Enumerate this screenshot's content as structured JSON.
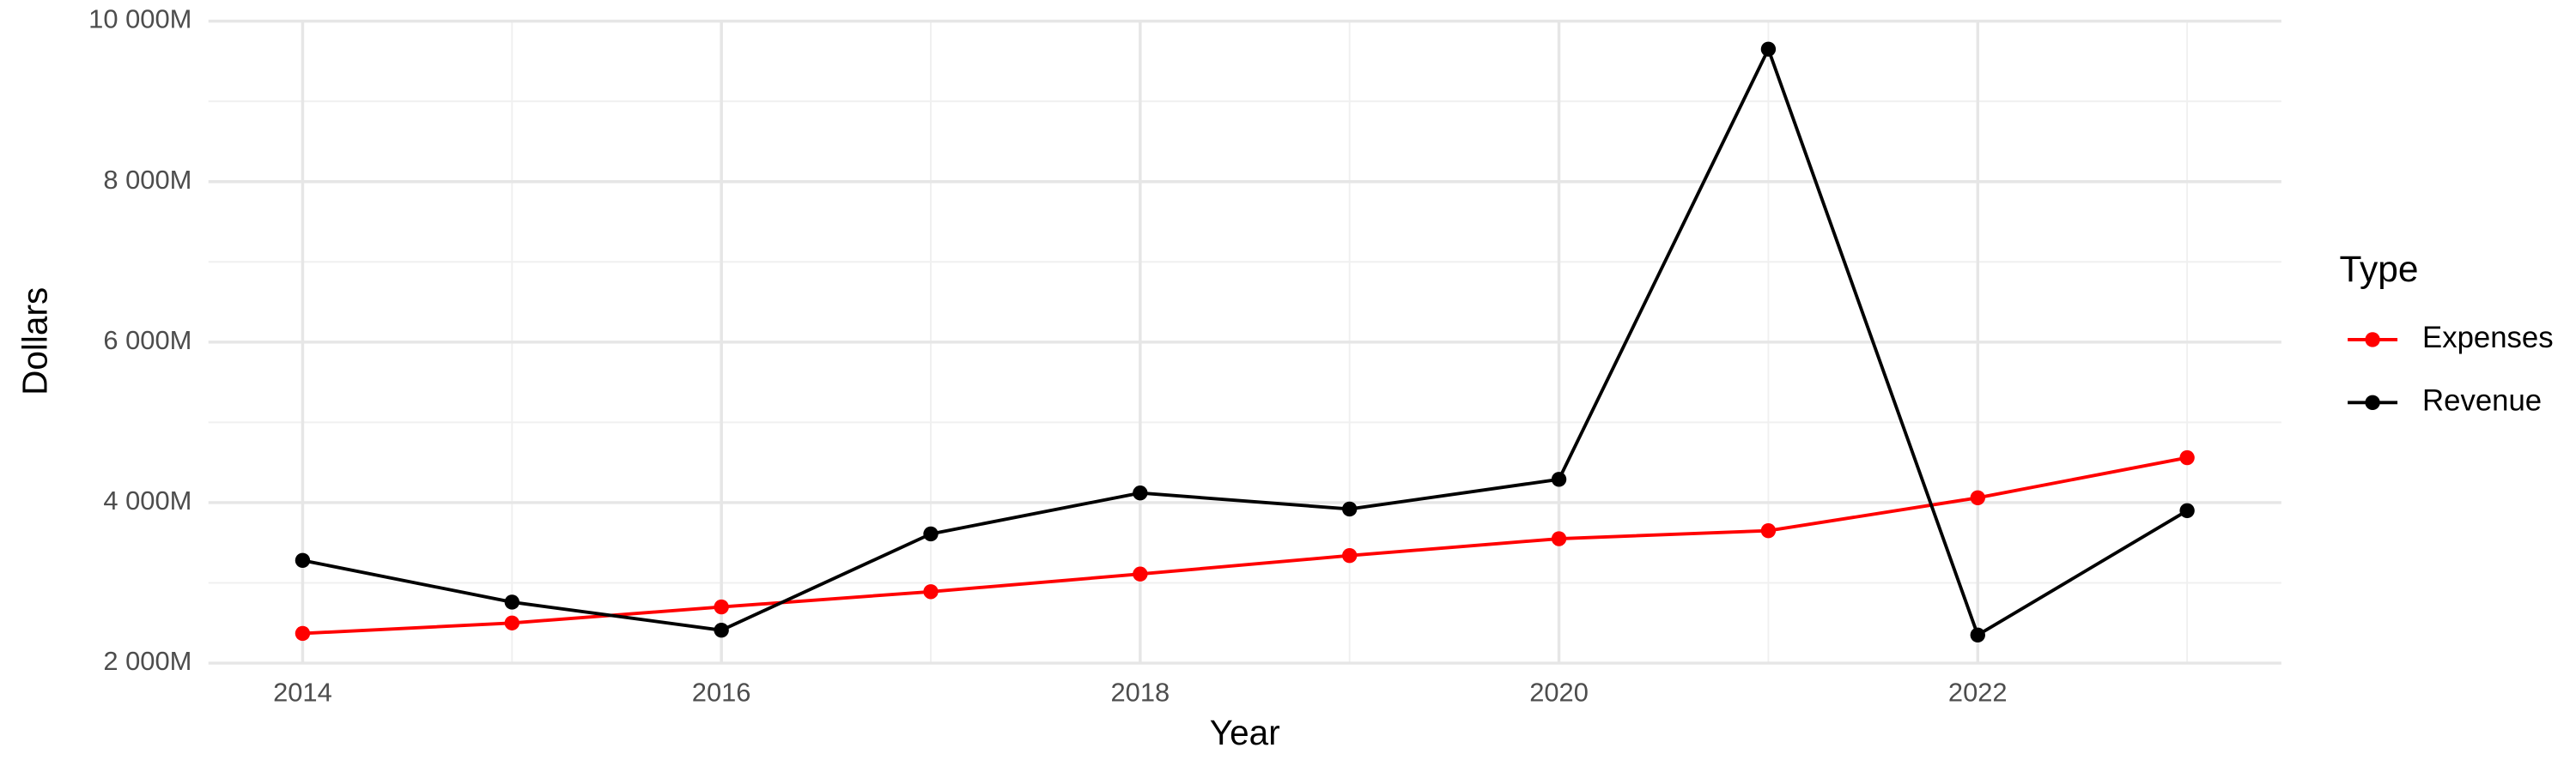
{
  "chart_data": {
    "type": "line",
    "x_label": "Year",
    "y_label": "Dollars",
    "legend_title": "Type",
    "legend_position": "right",
    "x": [
      2014,
      2015,
      2016,
      2017,
      2018,
      2019,
      2020,
      2021,
      2022,
      2023
    ],
    "series": [
      {
        "name": "Expenses",
        "color": "#ff0000",
        "values": [
          2370,
          2500,
          2700,
          2890,
          3110,
          3340,
          3550,
          3650,
          4060,
          4560
        ]
      },
      {
        "name": "Revenue",
        "color": "#000000",
        "values": [
          3280,
          2760,
          2410,
          3610,
          4120,
          3920,
          4290,
          9650,
          2350,
          3900
        ]
      }
    ],
    "xlim": [
      2013.55,
      2023.45
    ],
    "xticks": [
      2014,
      2016,
      2018,
      2020,
      2022
    ],
    "minor_xticks": [
      2015,
      2017,
      2019,
      2021,
      2023
    ],
    "ylim": [
      1985,
      10015
    ],
    "yticks": [
      {
        "value": 2000,
        "label": "2 000M"
      },
      {
        "value": 4000,
        "label": "4 000M"
      },
      {
        "value": 6000,
        "label": "6 000M"
      },
      {
        "value": 8000,
        "label": "8 000M"
      },
      {
        "value": 10000,
        "label": "10 000M"
      }
    ],
    "minor_yticks": [
      3000,
      5000,
      7000,
      9000
    ],
    "grid": true
  }
}
